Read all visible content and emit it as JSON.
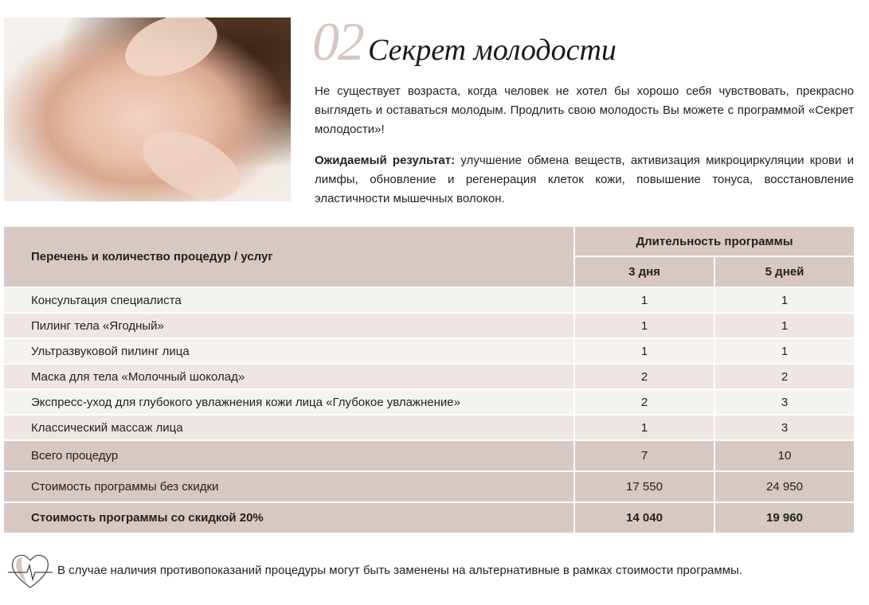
{
  "header": {
    "number": "02",
    "title": "Секрет молодости",
    "intro": "Не существует возраста, когда человек не хотел бы хорошо себя чувствовать, прекрасно выглядеть и оставаться молодым. Продлить свою молодость Вы можете с программой «Секрет молодости»!",
    "result_label": "Ожидаемый результат:",
    "result_text": " улучшение обмена веществ, активизация микроциркуляции крови и лимфы, обновление и регенерация клеток кожи, повышение тонуса, восстановление эластичности мышечных волокон."
  },
  "table": {
    "col_procedures": "Перечень и количество процедур / услуг",
    "col_duration": "Длительность программы",
    "col_3": "3 дня",
    "col_5": "5 дней",
    "rows": [
      {
        "name": "Консультация специалиста",
        "d3": "1",
        "d5": "1"
      },
      {
        "name": "Пилинг тела «Ягодный»",
        "d3": "1",
        "d5": "1"
      },
      {
        "name": "Ультразвуковой пилинг лица",
        "d3": "1",
        "d5": "1"
      },
      {
        "name": "Маска для тела «Молочный шоколад»",
        "d3": "2",
        "d5": "2"
      },
      {
        "name": "Экспресс-уход для глубокого увлажнения кожи лица «Глубокое  увлажнение»",
        "d3": "2",
        "d5": "3"
      },
      {
        "name": "Классический массаж лица",
        "d3": "1",
        "d5": "3"
      }
    ],
    "total": {
      "name": "Всего процедур",
      "d3": "7",
      "d5": "10"
    },
    "price": {
      "name": "Стоимость программы без скидки",
      "d3": "17 550",
      "d5": "24 950"
    },
    "discount": {
      "name": "Стоимость программы со скидкой 20%",
      "d3": "14 040",
      "d5": "19 960"
    }
  },
  "note": "В случае наличия противопоказаний процедуры могут быть заменены на альтернативные в рамках стоимости программы.",
  "colors": {
    "header_bg": "#d7c8c3",
    "row_light": "#f5f3f0",
    "row_pink": "#efe6e3",
    "accent_number": "#d6c6c1"
  }
}
